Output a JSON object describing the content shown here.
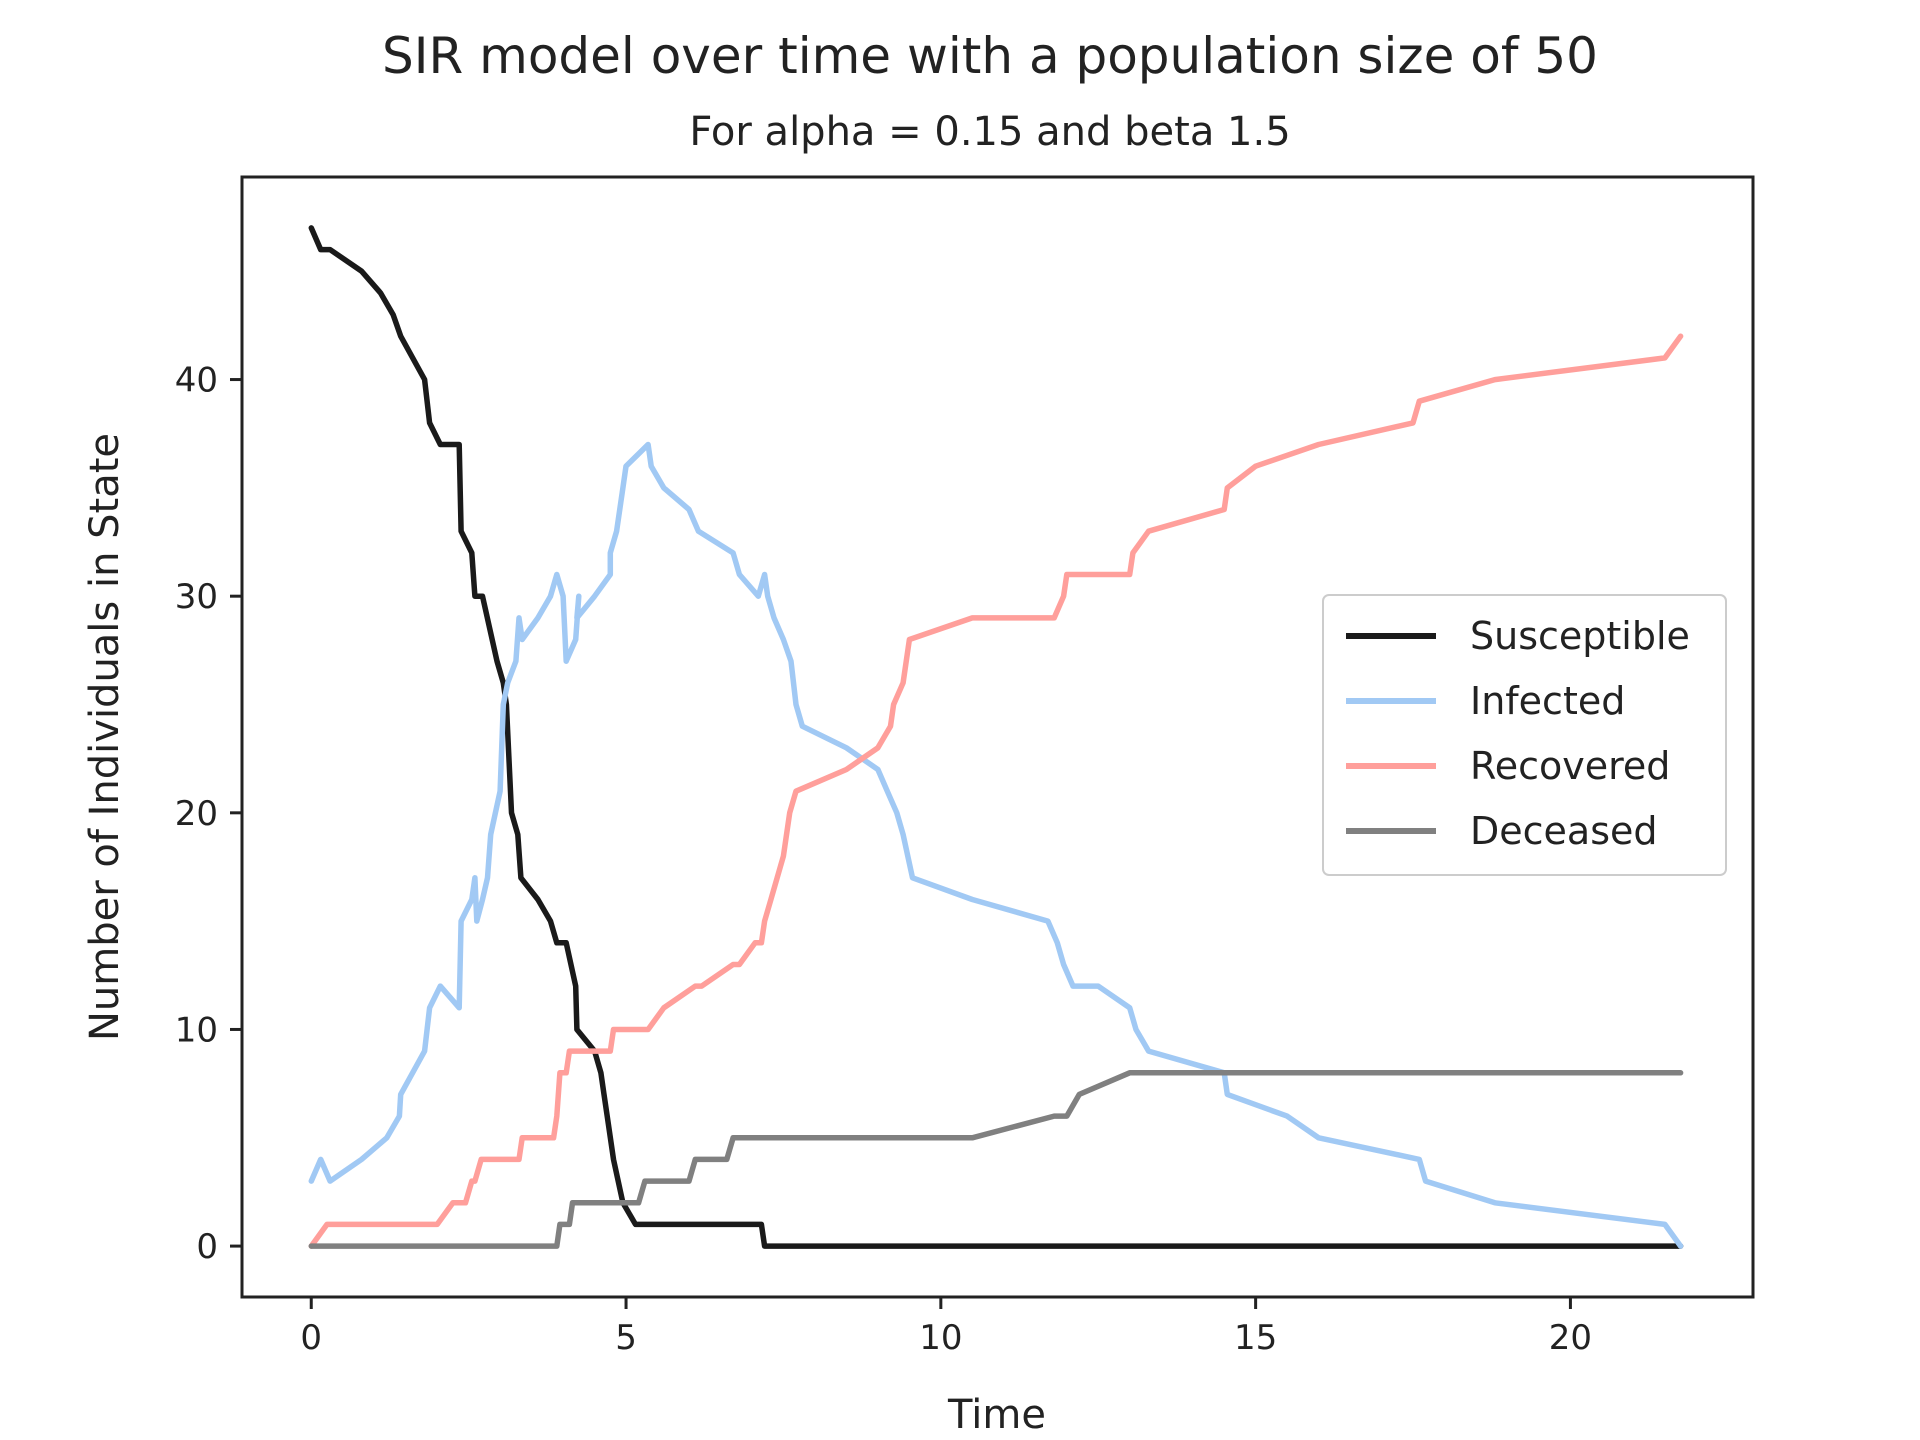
{
  "chart_data": {
    "type": "line",
    "title": "SIR model over time with a population size of 50",
    "subtitle": "For alpha = 0.15 and beta 1.5",
    "xlabel": "Time",
    "ylabel": "Number of Individuals in State",
    "xlim": [
      -1.1,
      22.9
    ],
    "ylim": [
      -2.35,
      49.35
    ],
    "xticks": [
      0,
      5,
      10,
      15,
      20
    ],
    "yticks": [
      0,
      10,
      20,
      30,
      40
    ],
    "grid": false,
    "legend": "center-right",
    "series": [
      {
        "name": "Susceptible",
        "color": "#1a1a1a",
        "points": [
          [
            0,
            47
          ],
          [
            0.15,
            46
          ],
          [
            0.3,
            46
          ],
          [
            0.8,
            45
          ],
          [
            1.1,
            44
          ],
          [
            1.3,
            43
          ],
          [
            1.42,
            42
          ],
          [
            1.8,
            40
          ],
          [
            1.88,
            38
          ],
          [
            2.05,
            37
          ],
          [
            2.35,
            37
          ],
          [
            2.38,
            33
          ],
          [
            2.55,
            32
          ],
          [
            2.6,
            30
          ],
          [
            2.72,
            30
          ],
          [
            2.95,
            27
          ],
          [
            3.05,
            26
          ],
          [
            3.1,
            25
          ],
          [
            3.18,
            20
          ],
          [
            3.28,
            19
          ],
          [
            3.33,
            17
          ],
          [
            3.6,
            16
          ],
          [
            3.8,
            15
          ],
          [
            3.9,
            14
          ],
          [
            4.05,
            14
          ],
          [
            4.2,
            12
          ],
          [
            4.22,
            10
          ],
          [
            4.5,
            9
          ],
          [
            4.6,
            8
          ],
          [
            4.65,
            7
          ],
          [
            4.7,
            6
          ],
          [
            4.8,
            4
          ],
          [
            4.95,
            2
          ],
          [
            5.15,
            1
          ],
          [
            5.3,
            1
          ],
          [
            7.15,
            1
          ],
          [
            7.2,
            0
          ],
          [
            21.75,
            0
          ]
        ]
      },
      {
        "name": "Infected",
        "color": "#a1c9f4",
        "points": [
          [
            0,
            3
          ],
          [
            0.15,
            4
          ],
          [
            0.3,
            3
          ],
          [
            0.8,
            4
          ],
          [
            1.2,
            5
          ],
          [
            1.4,
            6
          ],
          [
            1.42,
            7
          ],
          [
            1.8,
            9
          ],
          [
            1.88,
            11
          ],
          [
            2.05,
            12
          ],
          [
            2.35,
            11
          ],
          [
            2.38,
            15
          ],
          [
            2.55,
            16
          ],
          [
            2.6,
            17
          ],
          [
            2.63,
            15
          ],
          [
            2.72,
            16
          ],
          [
            2.8,
            17
          ],
          [
            2.85,
            19
          ],
          [
            3.0,
            21
          ],
          [
            3.05,
            25
          ],
          [
            3.12,
            26
          ],
          [
            3.25,
            27
          ],
          [
            3.3,
            29
          ],
          [
            3.35,
            28
          ],
          [
            3.6,
            29
          ],
          [
            3.8,
            30
          ],
          [
            3.9,
            31
          ],
          [
            4.0,
            30
          ],
          [
            4.05,
            27
          ],
          [
            4.2,
            28
          ],
          [
            4.25,
            30
          ],
          [
            4.22,
            29
          ],
          [
            4.5,
            30
          ],
          [
            4.75,
            31
          ],
          [
            4.75,
            32
          ],
          [
            4.85,
            33
          ],
          [
            4.95,
            35
          ],
          [
            5.0,
            36
          ],
          [
            5.35,
            37
          ],
          [
            5.4,
            36
          ],
          [
            5.6,
            35
          ],
          [
            6.0,
            34
          ],
          [
            6.15,
            33
          ],
          [
            6.7,
            32
          ],
          [
            6.8,
            31
          ],
          [
            7.1,
            30
          ],
          [
            7.2,
            31
          ],
          [
            7.25,
            30
          ],
          [
            7.35,
            29
          ],
          [
            7.5,
            28
          ],
          [
            7.62,
            27
          ],
          [
            7.7,
            25
          ],
          [
            7.8,
            24
          ],
          [
            8.5,
            23
          ],
          [
            9.0,
            22
          ],
          [
            9.15,
            21
          ],
          [
            9.3,
            20
          ],
          [
            9.4,
            19
          ],
          [
            9.55,
            17
          ],
          [
            10.5,
            16
          ],
          [
            11.7,
            15
          ],
          [
            11.85,
            14
          ],
          [
            11.95,
            13
          ],
          [
            12.1,
            12
          ],
          [
            12.5,
            12
          ],
          [
            13.0,
            11
          ],
          [
            13.1,
            10
          ],
          [
            13.3,
            9
          ],
          [
            14.5,
            8
          ],
          [
            14.55,
            7
          ],
          [
            15.5,
            6
          ],
          [
            16.0,
            5
          ],
          [
            17.6,
            4
          ],
          [
            17.7,
            3
          ],
          [
            18.8,
            2
          ],
          [
            21.5,
            1
          ],
          [
            21.75,
            0
          ]
        ]
      },
      {
        "name": "Recovered",
        "color": "#ff9f9b",
        "points": [
          [
            0,
            0
          ],
          [
            0.25,
            1
          ],
          [
            2.0,
            1
          ],
          [
            2.25,
            2
          ],
          [
            2.45,
            2
          ],
          [
            2.55,
            3
          ],
          [
            2.6,
            3
          ],
          [
            2.7,
            4
          ],
          [
            3.3,
            4
          ],
          [
            3.35,
            5
          ],
          [
            3.85,
            5
          ],
          [
            3.9,
            6
          ],
          [
            3.95,
            8
          ],
          [
            4.05,
            8
          ],
          [
            4.1,
            9
          ],
          [
            4.75,
            9
          ],
          [
            4.8,
            10
          ],
          [
            5.35,
            10
          ],
          [
            5.6,
            11
          ],
          [
            6.1,
            12
          ],
          [
            6.2,
            12
          ],
          [
            6.7,
            13
          ],
          [
            6.8,
            13
          ],
          [
            7.05,
            14
          ],
          [
            7.15,
            14
          ],
          [
            7.2,
            15
          ],
          [
            7.3,
            16
          ],
          [
            7.5,
            18
          ],
          [
            7.6,
            20
          ],
          [
            7.7,
            21
          ],
          [
            8.5,
            22
          ],
          [
            9.0,
            23
          ],
          [
            9.2,
            24
          ],
          [
            9.25,
            25
          ],
          [
            9.4,
            26
          ],
          [
            9.5,
            28
          ],
          [
            10.5,
            29
          ],
          [
            11.8,
            29
          ],
          [
            11.95,
            30
          ],
          [
            12.0,
            31
          ],
          [
            13.0,
            31
          ],
          [
            13.05,
            32
          ],
          [
            13.3,
            33
          ],
          [
            14.5,
            34
          ],
          [
            14.55,
            35
          ],
          [
            15.0,
            36
          ],
          [
            16.0,
            37
          ],
          [
            17.5,
            38
          ],
          [
            17.6,
            39
          ],
          [
            18.8,
            40
          ],
          [
            21.5,
            41
          ],
          [
            21.75,
            42
          ]
        ]
      },
      {
        "name": "Deceased",
        "color": "#808080",
        "points": [
          [
            0,
            0
          ],
          [
            3.9,
            0
          ],
          [
            3.95,
            1
          ],
          [
            4.1,
            1
          ],
          [
            4.15,
            2
          ],
          [
            5.2,
            2
          ],
          [
            5.3,
            3
          ],
          [
            6.0,
            3
          ],
          [
            6.1,
            4
          ],
          [
            6.6,
            4
          ],
          [
            6.7,
            5
          ],
          [
            10.5,
            5
          ],
          [
            11.8,
            6
          ],
          [
            12.0,
            6
          ],
          [
            12.2,
            7
          ],
          [
            13.0,
            8
          ],
          [
            21.75,
            8
          ]
        ]
      }
    ]
  }
}
